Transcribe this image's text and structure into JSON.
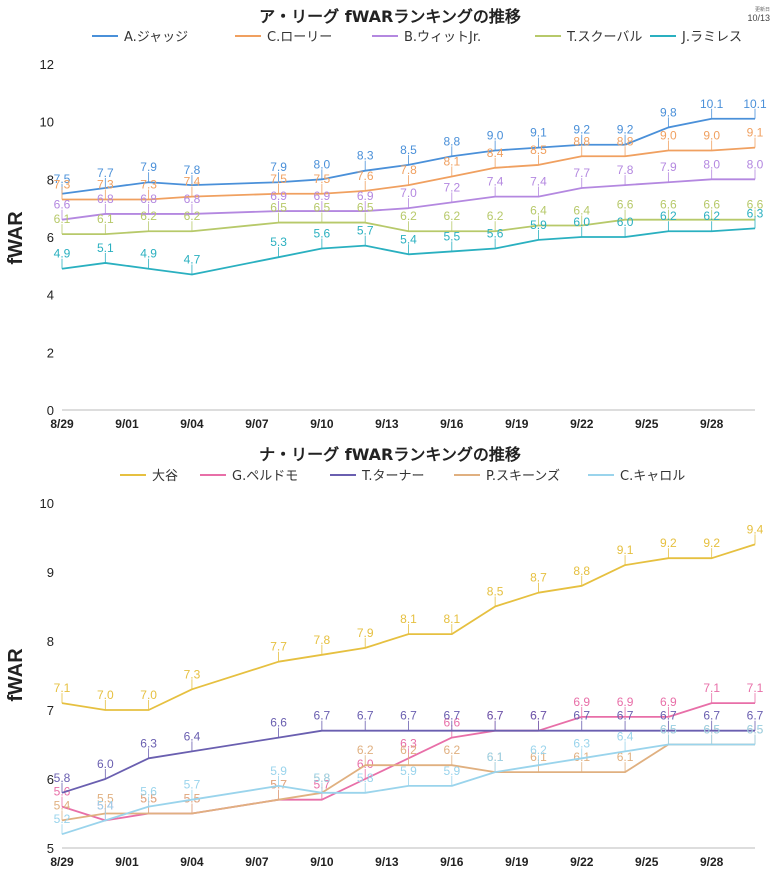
{
  "update": {
    "label": "更新日",
    "date": "10/13"
  },
  "chart_data": [
    {
      "type": "line",
      "title": "ア・リーグ fWARランキングの推移",
      "ylabel": "fWAR",
      "xlabel": "",
      "ylim": [
        0,
        12
      ],
      "yticks": [
        0,
        2,
        4,
        6,
        8,
        10,
        12
      ],
      "xtick_labels": [
        "8/29",
        "9/01",
        "9/04",
        "9/07",
        "9/10",
        "9/13",
        "9/16",
        "9/19",
        "9/22",
        "9/25",
        "9/28"
      ],
      "xtick_days": [
        0,
        3,
        6,
        9,
        12,
        15,
        18,
        21,
        24,
        27,
        30
      ],
      "x_range": [
        0,
        32
      ],
      "x": [
        0,
        2,
        4,
        6,
        10,
        12,
        14,
        16,
        18,
        20,
        22,
        24,
        26,
        28,
        30,
        32
      ],
      "series": [
        {
          "name": "A.ジャッジ",
          "color": "#4a90d9",
          "values": [
            7.5,
            7.7,
            7.9,
            7.8,
            7.9,
            8.0,
            8.3,
            8.5,
            8.8,
            9.0,
            9.1,
            9.2,
            9.2,
            9.8,
            10.1,
            10.1
          ],
          "labels": [
            "7.5",
            "7.7",
            "7.9",
            "7.8",
            "7.9",
            "8.0",
            "8.3",
            "8.5",
            "8.8",
            "9.0",
            "9.1",
            "9.2",
            "9.2",
            "9.8",
            "10.1",
            "10.1"
          ]
        },
        {
          "name": "C.ローリー",
          "color": "#f0a060",
          "values": [
            7.3,
            7.3,
            7.3,
            7.4,
            7.5,
            7.5,
            7.6,
            7.8,
            8.1,
            8.4,
            8.5,
            8.8,
            8.8,
            9.0,
            9.0,
            9.1
          ],
          "labels": [
            "7.3",
            "7.3",
            "7.3",
            "7.4",
            "7.5",
            "7.5",
            "7.6",
            "7.8",
            "8.1",
            "8.4",
            "8.5",
            "8.8",
            "8.8",
            "9.0",
            "9.0",
            "9.1"
          ]
        },
        {
          "name": "B.ウィットJr.",
          "color": "#b488e0",
          "values": [
            6.6,
            6.8,
            6.8,
            6.8,
            6.9,
            6.9,
            6.9,
            7.0,
            7.2,
            7.4,
            7.4,
            7.7,
            7.8,
            7.9,
            8.0,
            8.0
          ],
          "labels": [
            "6.6",
            "6.8",
            "6.8",
            "6.8",
            "6.9",
            "6.9",
            "6.9",
            "7.0",
            "7.2",
            "7.4",
            "7.4",
            "7.7",
            "7.8",
            "7.9",
            "8.0",
            "8.0"
          ]
        },
        {
          "name": "T.スクーバル",
          "color": "#b7c96a",
          "values": [
            6.1,
            6.1,
            6.2,
            6.2,
            6.5,
            6.5,
            6.5,
            6.2,
            6.2,
            6.2,
            6.4,
            6.4,
            6.6,
            6.6,
            6.6,
            6.6
          ],
          "labels": [
            "6.1",
            "6.1",
            "6.2",
            "6.2",
            "6.5",
            "6.5",
            "6.5",
            "6.2",
            "6.2",
            "6.2",
            "6.4",
            "6.4",
            "6.6",
            "6.6",
            "6.6",
            "6.6"
          ]
        },
        {
          "name": "J.ラミレス",
          "color": "#2ab0c0",
          "values": [
            4.9,
            5.1,
            4.9,
            4.7,
            5.3,
            5.6,
            5.7,
            5.4,
            5.5,
            5.6,
            5.9,
            6.0,
            6.0,
            6.2,
            6.2,
            6.3
          ],
          "labels": [
            "4.9",
            "5.1",
            "4.9",
            "4.7",
            "5.3",
            "5.6",
            "5.7",
            "5.4",
            "5.5",
            "5.6",
            "5.9",
            "6.0",
            "6.0",
            "6.2",
            "6.2",
            "6.3"
          ]
        }
      ]
    },
    {
      "type": "line",
      "title": "ナ・リーグ fWARランキングの推移",
      "ylabel": "fWAR",
      "xlabel": "",
      "ylim": [
        5,
        10
      ],
      "yticks": [
        5,
        6,
        7,
        8,
        9,
        10
      ],
      "xtick_labels": [
        "8/29",
        "9/01",
        "9/04",
        "9/07",
        "9/10",
        "9/13",
        "9/16",
        "9/19",
        "9/22",
        "9/25",
        "9/28"
      ],
      "xtick_days": [
        0,
        3,
        6,
        9,
        12,
        15,
        18,
        21,
        24,
        27,
        30
      ],
      "x_range": [
        0,
        32
      ],
      "x": [
        0,
        2,
        4,
        6,
        10,
        12,
        14,
        16,
        18,
        20,
        22,
        24,
        26,
        28,
        30,
        32
      ],
      "series": [
        {
          "name": "大谷",
          "color": "#e6c040",
          "values": [
            7.1,
            7.0,
            7.0,
            7.3,
            7.7,
            7.8,
            7.9,
            8.1,
            8.1,
            8.5,
            8.7,
            8.8,
            9.1,
            9.2,
            9.2,
            9.4
          ],
          "labels": [
            "7.1",
            "7.0",
            "7.0",
            "7.3",
            "7.7",
            "7.8",
            "7.9",
            "8.1",
            "8.1",
            "8.5",
            "8.7",
            "8.8",
            "9.1",
            "9.2",
            "9.2",
            "9.4"
          ]
        },
        {
          "name": "G.ペルドモ",
          "color": "#e86fa8",
          "values": [
            5.6,
            5.4,
            5.5,
            5.5,
            5.7,
            5.7,
            6.0,
            6.3,
            6.6,
            6.7,
            6.7,
            6.9,
            6.9,
            6.9,
            7.1,
            7.1
          ],
          "labels": [
            "5.6",
            "5.4",
            "5.5",
            "5.5",
            "5.7",
            "5.7",
            "6.0",
            "6.3",
            "6.6",
            "6.7",
            "6.7",
            "6.9",
            "6.9",
            "6.9",
            "7.1",
            "7.1"
          ]
        },
        {
          "name": "T.ターナー",
          "color": "#6a5fb0",
          "values": [
            5.8,
            6.0,
            6.3,
            6.4,
            6.6,
            6.7,
            6.7,
            6.7,
            6.7,
            6.7,
            6.7,
            6.7,
            6.7,
            6.7,
            6.7,
            6.7
          ],
          "labels": [
            "5.8",
            "6.0",
            "6.3",
            "6.4",
            "6.6",
            "6.7",
            "6.7",
            "6.7",
            "6.7",
            "6.7",
            "6.7",
            "6.7",
            "6.7",
            "6.7",
            "6.7",
            "6.7"
          ]
        },
        {
          "name": "P.スキーンズ",
          "color": "#e0b080",
          "values": [
            5.4,
            5.5,
            5.5,
            5.5,
            5.7,
            5.8,
            6.2,
            6.2,
            6.2,
            6.1,
            6.1,
            6.1,
            6.1,
            6.5,
            6.5,
            6.5
          ],
          "labels": [
            "5.4",
            "5.5",
            "5.5",
            "5.5",
            "5.7",
            "5.8",
            "6.2",
            "6.2",
            "6.2",
            "6.1",
            "6.1",
            "6.1",
            "6.1",
            "6.5",
            "6.5",
            "6.5"
          ]
        },
        {
          "name": "C.キャロル",
          "color": "#9ad4ec",
          "values": [
            5.2,
            5.4,
            5.6,
            5.7,
            5.9,
            5.8,
            5.8,
            5.9,
            5.9,
            6.1,
            6.2,
            6.3,
            6.4,
            6.5,
            6.5,
            6.5
          ],
          "labels": [
            "5.2",
            "5.4",
            "5.6",
            "5.7",
            "5.9",
            "5.8",
            "5.8",
            "5.9",
            "5.9",
            "6.1",
            "6.2",
            "6.3",
            "6.4",
            "6.5",
            "6.5",
            "6.5"
          ]
        }
      ]
    }
  ]
}
